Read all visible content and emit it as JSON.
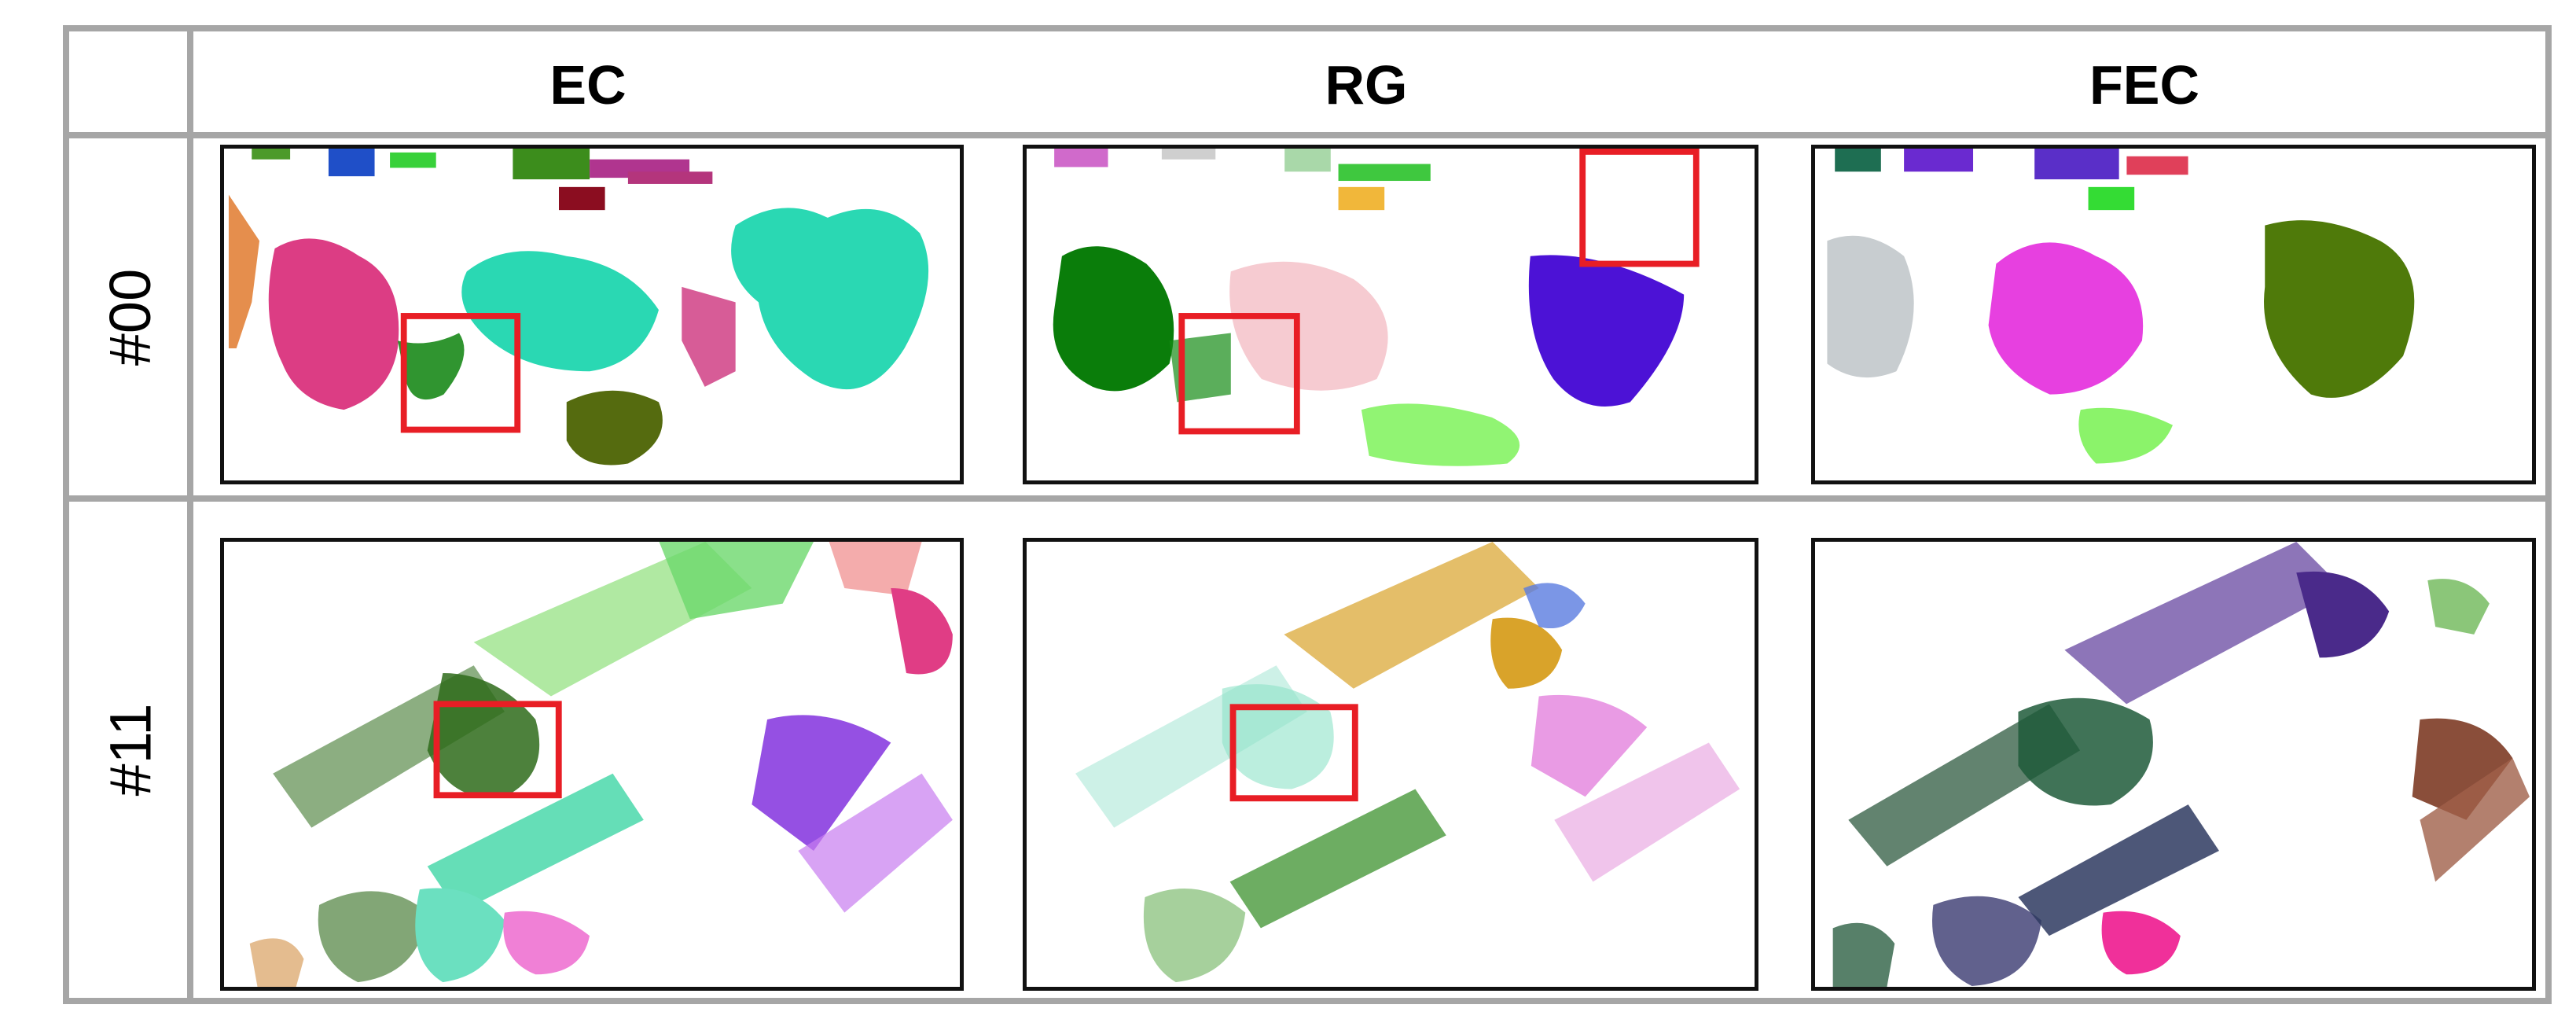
{
  "table": {
    "columns": [
      "EC",
      "RG",
      "FEC"
    ],
    "rows": [
      "#00",
      "#11"
    ]
  },
  "colors": {
    "border": "#a6a6a6",
    "highlight_box": "#e81e25"
  },
  "panels": [
    {
      "row": "#00",
      "column": "EC",
      "highlight_boxes": 1
    },
    {
      "row": "#00",
      "column": "RG",
      "highlight_boxes": 2
    },
    {
      "row": "#00",
      "column": "FEC",
      "highlight_boxes": 0
    },
    {
      "row": "#11",
      "column": "EC",
      "highlight_boxes": 1
    },
    {
      "row": "#11",
      "column": "RG",
      "highlight_boxes": 1
    },
    {
      "row": "#11",
      "column": "FEC",
      "highlight_boxes": 0
    }
  ]
}
